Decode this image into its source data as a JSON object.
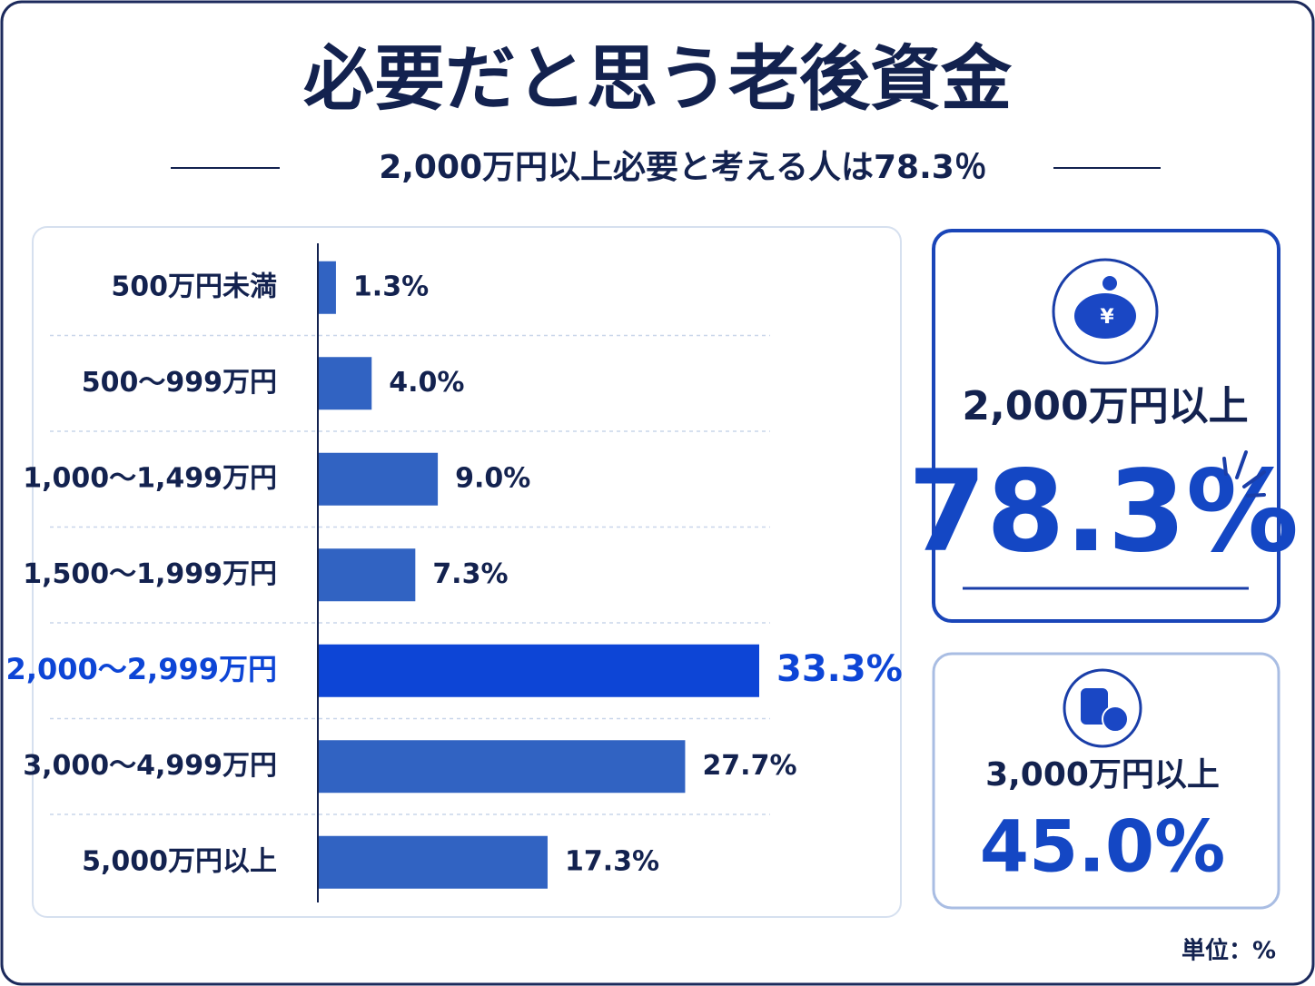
{
  "chart_data": {
    "type": "barh",
    "title": "必要だと思う老後資金",
    "subtitle": "2,000万円以上必要と考える人は78.3％",
    "categories": [
      "500万円未満",
      "500〜999万円",
      "1,000〜1,499万円",
      "1,500〜1,999万円",
      "2,000〜2,999万円",
      "3,000〜4,999万円",
      "5,000万円以上"
    ],
    "values": [
      1.3,
      4.0,
      9.0,
      7.3,
      33.3,
      27.7,
      17.3
    ],
    "value_labels": [
      "1.3%",
      "4.0%",
      "9.0%",
      "7.3%",
      "33.3%",
      "27.7%",
      "17.3%"
    ],
    "colors": [
      "#3163c2",
      "#3163c2",
      "#3163c2",
      "#3163c2",
      "#0d45d6",
      "#3163c2",
      "#3163c2"
    ],
    "summary": [
      {
        "label": "2,000万円以上",
        "value": "78.3%"
      },
      {
        "label": "3,000万円以上",
        "value": "45.0%"
      }
    ],
    "unit_note": "単位：%"
  }
}
